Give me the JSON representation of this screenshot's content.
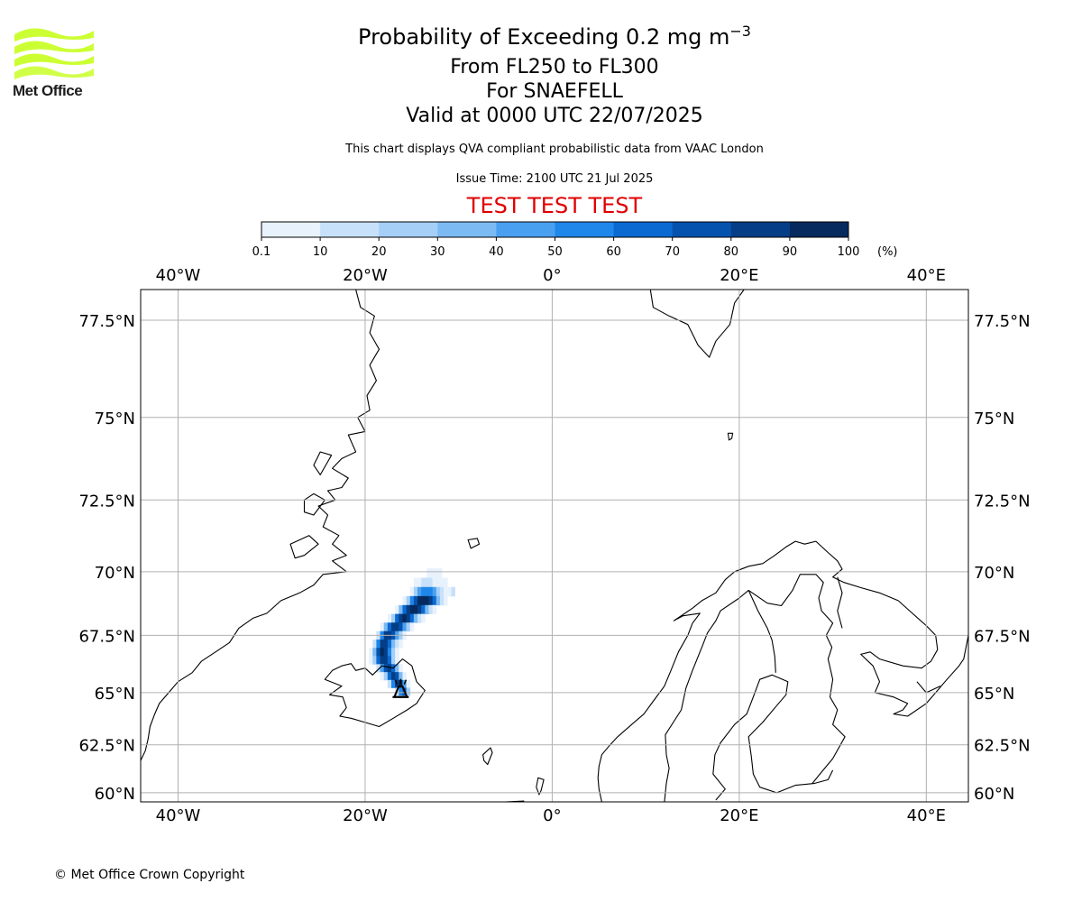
{
  "header": {
    "title_main": "Probability of Exceeding 0.2 mg m",
    "title_sup": "−3",
    "levels": "From FL250 to FL300",
    "volcano": "For SNAEFELL",
    "valid": "Valid at 0000 UTC 22/07/2025",
    "disclaimer": "This chart displays QVA compliant probabilistic data from VAAC London",
    "issue_time": "Issue Time: 2100 UTC 21 Jul 2025",
    "test_banner": "TEST TEST TEST"
  },
  "logo": {
    "text": "Met Office",
    "color": "#ccff33"
  },
  "footer": {
    "copyright": "© Met Office Crown Copyright"
  },
  "colorbar": {
    "unit": "(%)",
    "ticks": [
      "0.1",
      "10",
      "20",
      "30",
      "40",
      "50",
      "60",
      "70",
      "80",
      "90",
      "100"
    ],
    "colors": [
      "#e8f2fd",
      "#c8e1fa",
      "#a5cff7",
      "#7cbaf4",
      "#4aa0f0",
      "#1f86ea",
      "#0a6ad1",
      "#0552ae",
      "#053e86",
      "#062a5e"
    ]
  },
  "map": {
    "lon_ticks": [
      "40°W",
      "20°W",
      "0°",
      "20°E",
      "40°E"
    ],
    "lat_ticks": [
      "77.5°N",
      "75°N",
      "72.5°N",
      "70°N",
      "67.5°N",
      "65°N",
      "62.5°N",
      "60°N"
    ],
    "lon_range": [
      -44,
      44.5
    ],
    "lat_range": [
      59.5,
      78.2
    ],
    "grid": true,
    "volcano_symbol": "volcano-icon",
    "plume_lat_rows": [
      {
        "lat": 69.95,
        "cells": [
          [
            -13.2,
            1
          ],
          [
            -12.8,
            1
          ],
          [
            -12.4,
            1
          ],
          [
            -12.0,
            1
          ]
        ]
      },
      {
        "lat": 69.6,
        "cells": [
          [
            -14.6,
            1
          ],
          [
            -14.2,
            1
          ],
          [
            -13.8,
            2
          ],
          [
            -13.4,
            2
          ],
          [
            -13.0,
            2
          ],
          [
            -12.6,
            1
          ],
          [
            -12.2,
            1
          ],
          [
            -11.8,
            1
          ],
          [
            -11.4,
            1
          ]
        ]
      },
      {
        "lat": 69.25,
        "cells": [
          [
            -15.0,
            1
          ],
          [
            -14.6,
            3
          ],
          [
            -14.2,
            5
          ],
          [
            -13.8,
            6
          ],
          [
            -13.4,
            6
          ],
          [
            -13.0,
            6
          ],
          [
            -12.6,
            5
          ],
          [
            -12.2,
            3
          ],
          [
            -11.8,
            2
          ],
          [
            -11.4,
            1
          ],
          [
            -11.0,
            1
          ],
          [
            -10.6,
            2
          ]
        ]
      },
      {
        "lat": 68.9,
        "cells": [
          [
            -15.8,
            1
          ],
          [
            -15.4,
            3
          ],
          [
            -15.0,
            6
          ],
          [
            -14.6,
            8
          ],
          [
            -14.2,
            10
          ],
          [
            -13.8,
            10
          ],
          [
            -13.4,
            10
          ],
          [
            -13.0,
            9
          ],
          [
            -12.6,
            7
          ],
          [
            -12.2,
            4
          ],
          [
            -11.8,
            2
          ],
          [
            -11.4,
            1
          ]
        ]
      },
      {
        "lat": 68.55,
        "cells": [
          [
            -16.6,
            1
          ],
          [
            -16.2,
            4
          ],
          [
            -15.8,
            7
          ],
          [
            -15.4,
            9
          ],
          [
            -15.0,
            10
          ],
          [
            -14.6,
            10
          ],
          [
            -14.2,
            9
          ],
          [
            -13.8,
            7
          ],
          [
            -13.4,
            4
          ],
          [
            -13.0,
            2
          ],
          [
            -12.6,
            1
          ]
        ]
      },
      {
        "lat": 68.2,
        "cells": [
          [
            -17.4,
            1
          ],
          [
            -17.0,
            3
          ],
          [
            -16.6,
            7
          ],
          [
            -16.2,
            9
          ],
          [
            -15.8,
            10
          ],
          [
            -15.4,
            9
          ],
          [
            -15.0,
            7
          ],
          [
            -14.6,
            4
          ],
          [
            -14.2,
            2
          ],
          [
            -13.8,
            1
          ]
        ]
      },
      {
        "lat": 67.85,
        "cells": [
          [
            -18.2,
            1
          ],
          [
            -17.8,
            4
          ],
          [
            -17.4,
            7
          ],
          [
            -17.0,
            9
          ],
          [
            -16.6,
            9
          ],
          [
            -16.2,
            8
          ],
          [
            -15.8,
            5
          ],
          [
            -15.4,
            3
          ],
          [
            -15.0,
            1
          ]
        ]
      },
      {
        "lat": 67.5,
        "cells": [
          [
            -18.6,
            2
          ],
          [
            -18.2,
            6
          ],
          [
            -17.8,
            9
          ],
          [
            -17.4,
            9
          ],
          [
            -17.0,
            8
          ],
          [
            -16.6,
            5
          ],
          [
            -16.2,
            3
          ],
          [
            -15.8,
            1
          ]
        ]
      },
      {
        "lat": 67.15,
        "cells": [
          [
            -19.0,
            2
          ],
          [
            -18.6,
            6
          ],
          [
            -18.2,
            9
          ],
          [
            -17.8,
            9
          ],
          [
            -17.4,
            7
          ],
          [
            -17.0,
            4
          ],
          [
            -16.6,
            2
          ],
          [
            -16.2,
            1
          ]
        ]
      },
      {
        "lat": 66.8,
        "cells": [
          [
            -19.4,
            1
          ],
          [
            -19.0,
            4
          ],
          [
            -18.6,
            8
          ],
          [
            -18.2,
            10
          ],
          [
            -17.8,
            9
          ],
          [
            -17.4,
            6
          ],
          [
            -17.0,
            3
          ],
          [
            -16.6,
            1
          ]
        ]
      },
      {
        "lat": 66.45,
        "cells": [
          [
            -19.4,
            1
          ],
          [
            -19.0,
            3
          ],
          [
            -18.6,
            7
          ],
          [
            -18.2,
            9
          ],
          [
            -17.8,
            9
          ],
          [
            -17.4,
            7
          ],
          [
            -17.0,
            3
          ],
          [
            -16.6,
            1
          ]
        ]
      },
      {
        "lat": 66.1,
        "cells": [
          [
            -18.6,
            2
          ],
          [
            -18.2,
            5
          ],
          [
            -17.8,
            8
          ],
          [
            -17.4,
            9
          ],
          [
            -17.0,
            7
          ],
          [
            -16.6,
            4
          ],
          [
            -16.2,
            1
          ]
        ]
      },
      {
        "lat": 65.75,
        "cells": [
          [
            -18.2,
            1
          ],
          [
            -17.8,
            3
          ],
          [
            -17.4,
            7
          ],
          [
            -17.0,
            9
          ],
          [
            -16.6,
            8
          ],
          [
            -16.2,
            4
          ],
          [
            -15.8,
            1
          ]
        ]
      },
      {
        "lat": 65.4,
        "cells": [
          [
            -17.4,
            2
          ],
          [
            -17.0,
            6
          ],
          [
            -16.6,
            9
          ],
          [
            -16.2,
            10
          ],
          [
            -15.8,
            5
          ],
          [
            -15.4,
            1
          ]
        ]
      },
      {
        "lat": 65.05,
        "cells": [
          [
            -16.6,
            2
          ],
          [
            -16.2,
            6
          ],
          [
            -15.8,
            8
          ],
          [
            -15.4,
            3
          ]
        ]
      }
    ]
  }
}
